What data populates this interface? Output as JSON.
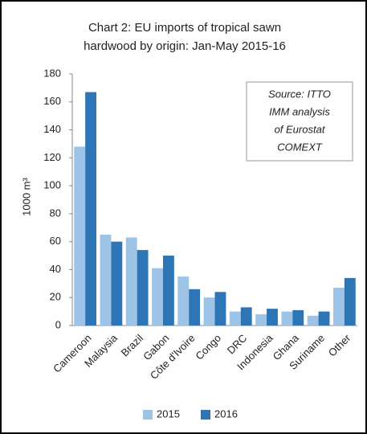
{
  "chart_data": {
    "type": "bar",
    "title": [
      "Chart 2: EU imports of tropical sawn",
      "hardwood by origin: Jan-May 2015-16"
    ],
    "y_label": "1000 m³",
    "annotation": [
      "Source: ITTO",
      "IMM analysis",
      "of Eurostat",
      "COMEXT"
    ],
    "categories": [
      "Cameroon",
      "Malaysia",
      "Brazil",
      "Gabon",
      "Côte d'Ivoire",
      "Congo",
      "DRC",
      "Indonesia",
      "Ghana",
      "Suriname",
      "Other"
    ],
    "series": [
      {
        "name": "2015",
        "color": "#9dc3e6",
        "values": [
          128,
          65,
          63,
          41,
          35,
          20,
          10,
          8,
          10,
          7,
          27
        ]
      },
      {
        "name": "2016",
        "color": "#2e75b6",
        "values": [
          167,
          60,
          54,
          50,
          26,
          24,
          13,
          12,
          11,
          10,
          34
        ]
      }
    ],
    "ylim": [
      0,
      180
    ],
    "yticks": [
      0,
      20,
      40,
      60,
      80,
      100,
      120,
      140,
      160,
      180
    ],
    "grid": false,
    "legend": "bottom"
  }
}
